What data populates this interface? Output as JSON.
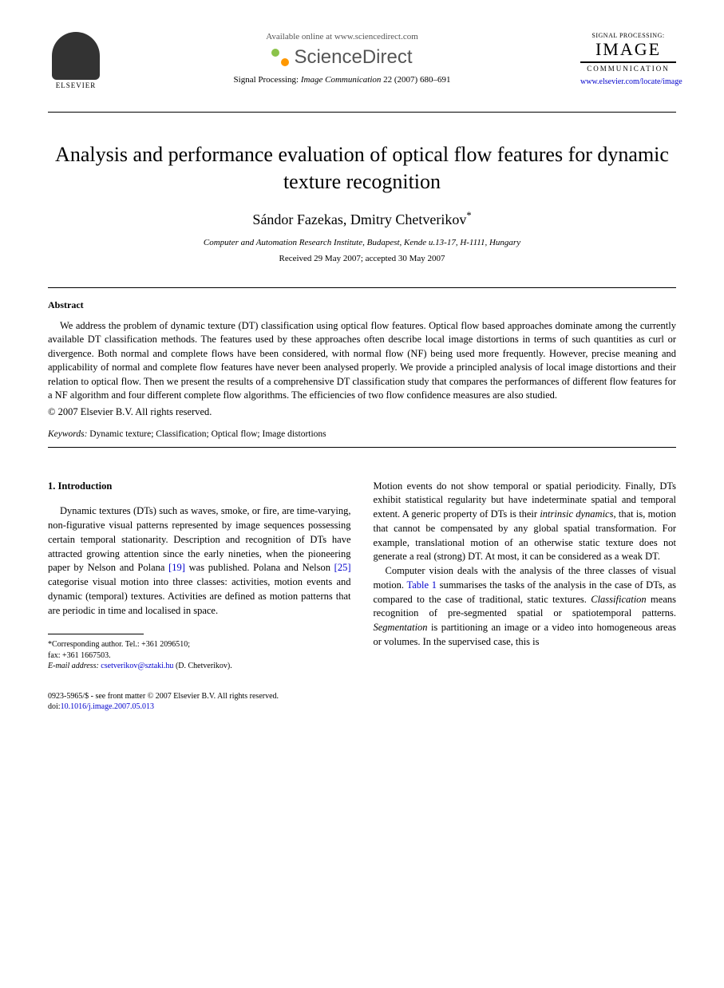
{
  "header": {
    "elsevier_label": "ELSEVIER",
    "available_text": "Available online at www.sciencedirect.com",
    "sciencedirect_text": "ScienceDirect",
    "journal_top": "SIGNAL PROCESSING:",
    "journal_main": "IMAGE",
    "journal_sub": "COMMUNICATION",
    "journal_link": "www.elsevier.com/locate/image",
    "citation_prefix": "Signal Processing: ",
    "citation_italic": "Image Communication",
    "citation_suffix": " 22 (2007) 680–691"
  },
  "title": "Analysis and performance evaluation of optical flow features for dynamic texture recognition",
  "authors": "Sándor Fazekas, Dmitry Chetverikov",
  "corr_marker": "*",
  "affiliation": "Computer and Automation Research Institute, Budapest, Kende u.13-17, H-1111, Hungary",
  "dates": "Received 29 May 2007; accepted 30 May 2007",
  "abstract": {
    "heading": "Abstract",
    "body": "We address the problem of dynamic texture (DT) classification using optical flow features. Optical flow based approaches dominate among the currently available DT classification methods. The features used by these approaches often describe local image distortions in terms of such quantities as curl or divergence. Both normal and complete flows have been considered, with normal flow (NF) being used more frequently. However, precise meaning and applicability of normal and complete flow features have never been analysed properly. We provide a principled analysis of local image distortions and their relation to optical flow. Then we present the results of a comprehensive DT classification study that compares the performances of different flow features for a NF algorithm and four different complete flow algorithms. The efficiencies of two flow confidence measures are also studied.",
    "copyright": "© 2007 Elsevier B.V. All rights reserved."
  },
  "keywords": {
    "label": "Keywords:",
    "text": " Dynamic texture; Classification; Optical flow; Image distortions"
  },
  "section1": {
    "heading": "1. Introduction",
    "col1_part1": "Dynamic textures (DTs) such as waves, smoke, or fire, are time-varying, non-figurative visual patterns represented by image sequences possessing certain temporal stationarity. Description and recognition of DTs have attracted growing attention since the early nineties, when the pioneering paper by Nelson and Polana ",
    "ref19": "[19]",
    "col1_part2": " was published. Polana and Nelson ",
    "ref25": "[25]",
    "col1_part3": " categorise visual motion into three classes: activities, motion events and dynamic (temporal) textures. Activities are defined as motion patterns that are periodic in time and localised in space.",
    "col2_part1": "Motion events do not show temporal or spatial periodicity. Finally, DTs exhibit statistical regularity but have indeterminate spatial and temporal extent. A generic property of DTs is their ",
    "col2_italic1": "intrinsic dynamics",
    "col2_part2": ", that is, motion that cannot be compensated by any global spatial transformation. For example, translational motion of an otherwise static texture does not generate a real (strong) DT. At most, it can be considered as a weak DT.",
    "col2_para2_part1": "Computer vision deals with the analysis of the three classes of visual motion. ",
    "table1_ref": "Table 1",
    "col2_para2_part2": " summarises the tasks of the analysis in the case of DTs, as compared to the case of traditional, static textures. ",
    "col2_italic2": "Classification",
    "col2_para2_part3": " means recognition of pre-segmented spatial or spatiotemporal patterns. ",
    "col2_italic3": "Segmentation",
    "col2_para2_part4": " is partitioning an image or a video into homogeneous areas or volumes. In the supervised case, this is"
  },
  "footnote": {
    "corr_line": "*Corresponding author. Tel.: +361 2096510;",
    "fax_line": "fax: +361 1667503.",
    "email_label": "E-mail address:",
    "email": " csetverikov@sztaki.hu",
    "email_suffix": " (D. Chetverikov)."
  },
  "bottom": {
    "front_matter": "0923-5965/$ - see front matter © 2007 Elsevier B.V. All rights reserved.",
    "doi_prefix": "doi:",
    "doi": "10.1016/j.image.2007.05.013"
  }
}
